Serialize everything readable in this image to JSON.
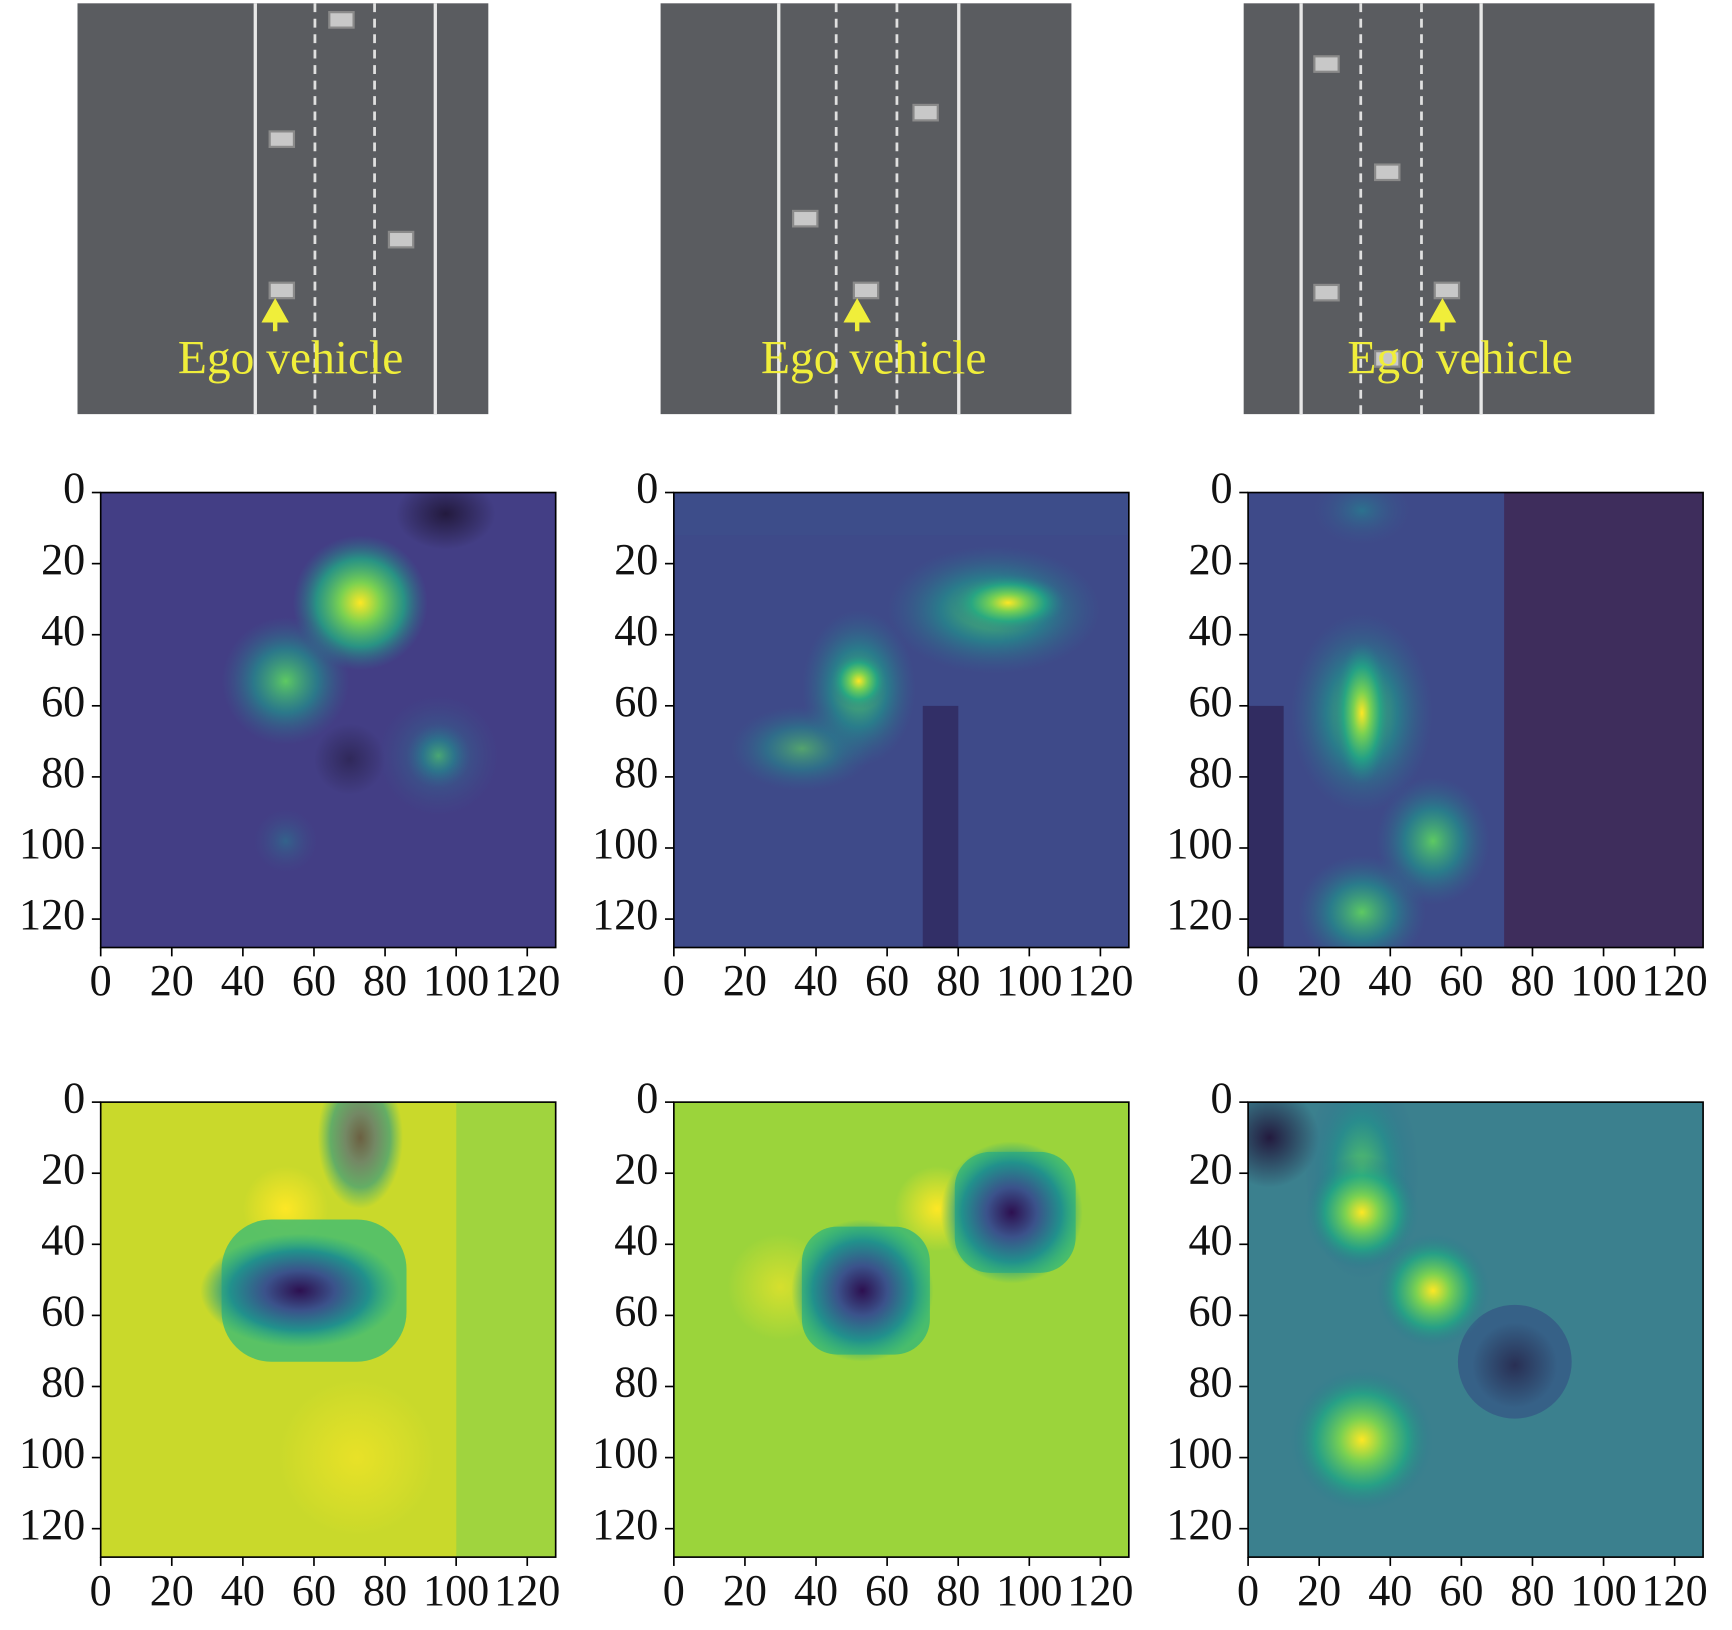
{
  "scenes": [
    {
      "label": "Ego vehicle"
    },
    {
      "label": "Ego vehicle"
    },
    {
      "label": "Ego vehicle"
    }
  ],
  "heatmaps": [
    {
      "xlim": [
        0,
        128
      ],
      "ylim": [
        0,
        128
      ],
      "xticks": [
        0,
        20,
        40,
        60,
        80,
        100,
        120
      ],
      "yticks": [
        0,
        20,
        40,
        60,
        80,
        100,
        120
      ]
    },
    {
      "xlim": [
        0,
        128
      ],
      "ylim": [
        0,
        128
      ],
      "xticks": [
        0,
        20,
        40,
        60,
        80,
        100,
        120
      ],
      "yticks": [
        0,
        20,
        40,
        60,
        80,
        100,
        120
      ]
    },
    {
      "xlim": [
        0,
        128
      ],
      "ylim": [
        0,
        128
      ],
      "xticks": [
        0,
        20,
        40,
        60,
        80,
        100,
        120
      ],
      "yticks": [
        0,
        20,
        40,
        60,
        80,
        100,
        120
      ]
    },
    {
      "xlim": [
        0,
        128
      ],
      "ylim": [
        0,
        128
      ],
      "xticks": [
        0,
        20,
        40,
        60,
        80,
        100,
        120
      ],
      "yticks": [
        0,
        20,
        40,
        60,
        80,
        100,
        120
      ]
    },
    {
      "xlim": [
        0,
        128
      ],
      "ylim": [
        0,
        128
      ],
      "xticks": [
        0,
        20,
        40,
        60,
        80,
        100,
        120
      ],
      "yticks": [
        0,
        20,
        40,
        60,
        80,
        100,
        120
      ]
    },
    {
      "xlim": [
        0,
        128
      ],
      "ylim": [
        0,
        128
      ],
      "xticks": [
        0,
        20,
        40,
        60,
        80,
        100,
        120
      ],
      "yticks": [
        0,
        20,
        40,
        60,
        80,
        100,
        120
      ]
    }
  ]
}
